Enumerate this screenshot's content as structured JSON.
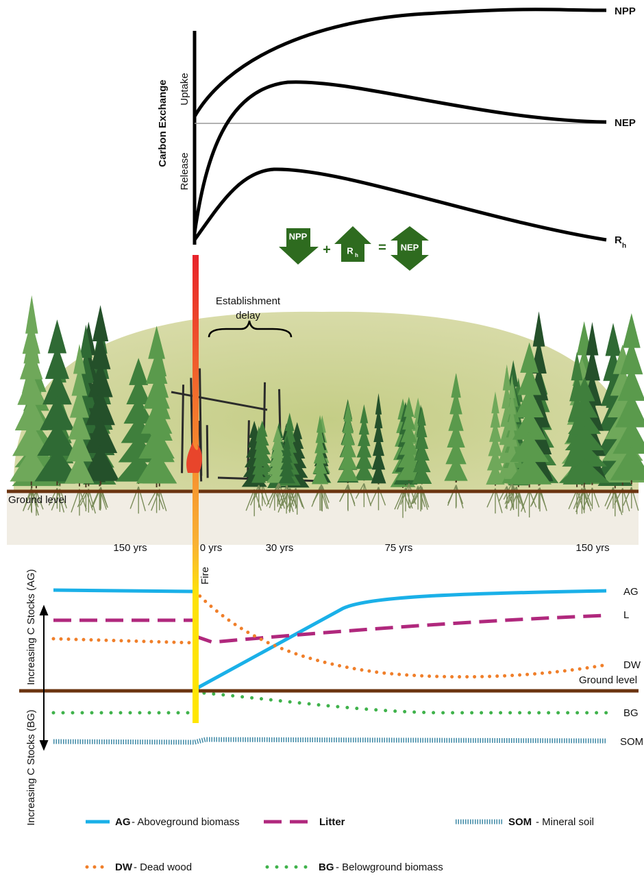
{
  "carbon_exchange": {
    "axis_title": "Carbon Exchange",
    "uptake": "Uptake",
    "release": "Release",
    "curves": {
      "npp": "NPP",
      "nep": "NEP",
      "rh": {
        "main": "R",
        "sub": "h"
      }
    }
  },
  "equation": {
    "npp": "NPP",
    "plus": "+",
    "rh": {
      "main": "R",
      "sub": "h"
    },
    "equals": "=",
    "nep": "NEP"
  },
  "landscape": {
    "annotation": [
      "Establishment",
      "delay"
    ],
    "ground_level": "Ground level",
    "timeline": [
      "150 yrs",
      "0 yrs",
      "30 yrs",
      "75 yrs",
      "150 yrs"
    ]
  },
  "stocks": {
    "fire": "Fire",
    "axis_ag": "Increasing C Stocks (AG)",
    "axis_bg": "Increasing C Stocks (BG)",
    "ground_level": "Ground level",
    "curves": [
      "AG",
      "L",
      "DW",
      "BG",
      "SOM"
    ]
  },
  "legend": [
    {
      "code": "AG",
      "desc": "- Aboveground biomass"
    },
    {
      "code": "Litter"
    },
    {
      "code": "SOM",
      "desc": "- Mineral soil"
    },
    {
      "code": "DW",
      "desc": "- Dead wood"
    },
    {
      "code": "BG",
      "desc": "- Belowground biomass"
    }
  ]
}
